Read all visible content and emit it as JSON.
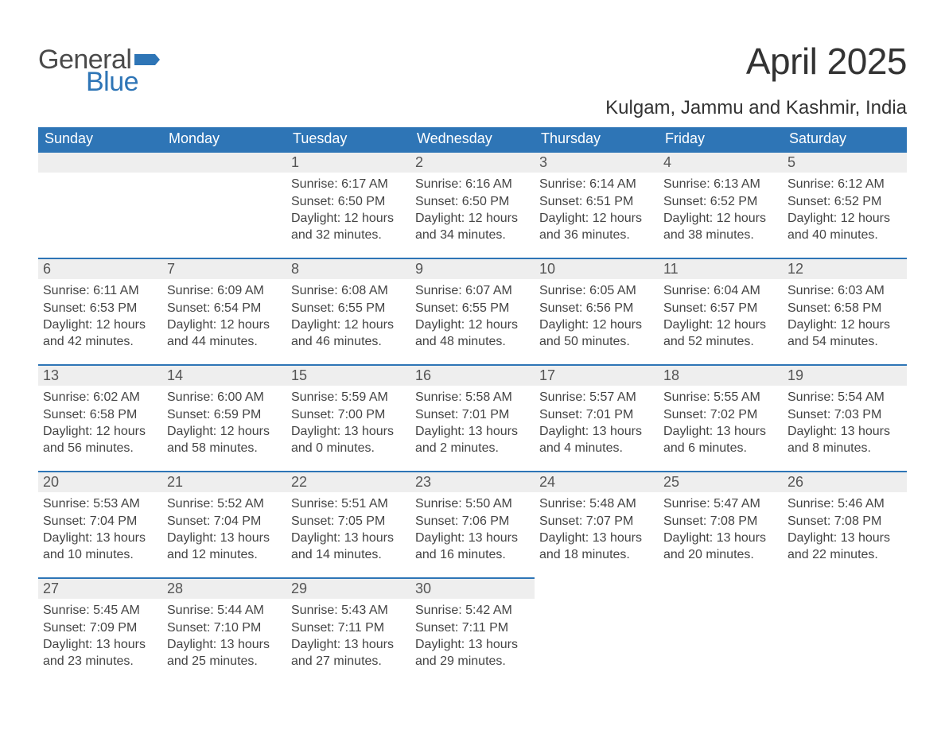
{
  "logo": {
    "text1": "General",
    "text2": "Blue"
  },
  "title": "April 2025",
  "location": "Kulgam, Jammu and Kashmir, India",
  "colors": {
    "header_bg": "#2e75b6",
    "header_text": "#ffffff",
    "band_bg": "#eeeeee",
    "band_border": "#2e75b6",
    "body_text": "#444444",
    "page_bg": "#ffffff",
    "logo_gray": "#4a4a4a",
    "logo_blue": "#2e75b6"
  },
  "typography": {
    "month_title_pt": 46,
    "location_pt": 24,
    "day_header_pt": 18,
    "day_number_pt": 18,
    "cell_text_pt": 16,
    "font_family": "Segoe UI"
  },
  "day_headers": [
    "Sunday",
    "Monday",
    "Tuesday",
    "Wednesday",
    "Thursday",
    "Friday",
    "Saturday"
  ],
  "weeks": [
    [
      {
        "num": "",
        "sunrise": "",
        "sunset": "",
        "daylight1": "",
        "daylight2": ""
      },
      {
        "num": "",
        "sunrise": "",
        "sunset": "",
        "daylight1": "",
        "daylight2": ""
      },
      {
        "num": "1",
        "sunrise": "Sunrise: 6:17 AM",
        "sunset": "Sunset: 6:50 PM",
        "daylight1": "Daylight: 12 hours",
        "daylight2": "and 32 minutes."
      },
      {
        "num": "2",
        "sunrise": "Sunrise: 6:16 AM",
        "sunset": "Sunset: 6:50 PM",
        "daylight1": "Daylight: 12 hours",
        "daylight2": "and 34 minutes."
      },
      {
        "num": "3",
        "sunrise": "Sunrise: 6:14 AM",
        "sunset": "Sunset: 6:51 PM",
        "daylight1": "Daylight: 12 hours",
        "daylight2": "and 36 minutes."
      },
      {
        "num": "4",
        "sunrise": "Sunrise: 6:13 AM",
        "sunset": "Sunset: 6:52 PM",
        "daylight1": "Daylight: 12 hours",
        "daylight2": "and 38 minutes."
      },
      {
        "num": "5",
        "sunrise": "Sunrise: 6:12 AM",
        "sunset": "Sunset: 6:52 PM",
        "daylight1": "Daylight: 12 hours",
        "daylight2": "and 40 minutes."
      }
    ],
    [
      {
        "num": "6",
        "sunrise": "Sunrise: 6:11 AM",
        "sunset": "Sunset: 6:53 PM",
        "daylight1": "Daylight: 12 hours",
        "daylight2": "and 42 minutes."
      },
      {
        "num": "7",
        "sunrise": "Sunrise: 6:09 AM",
        "sunset": "Sunset: 6:54 PM",
        "daylight1": "Daylight: 12 hours",
        "daylight2": "and 44 minutes."
      },
      {
        "num": "8",
        "sunrise": "Sunrise: 6:08 AM",
        "sunset": "Sunset: 6:55 PM",
        "daylight1": "Daylight: 12 hours",
        "daylight2": "and 46 minutes."
      },
      {
        "num": "9",
        "sunrise": "Sunrise: 6:07 AM",
        "sunset": "Sunset: 6:55 PM",
        "daylight1": "Daylight: 12 hours",
        "daylight2": "and 48 minutes."
      },
      {
        "num": "10",
        "sunrise": "Sunrise: 6:05 AM",
        "sunset": "Sunset: 6:56 PM",
        "daylight1": "Daylight: 12 hours",
        "daylight2": "and 50 minutes."
      },
      {
        "num": "11",
        "sunrise": "Sunrise: 6:04 AM",
        "sunset": "Sunset: 6:57 PM",
        "daylight1": "Daylight: 12 hours",
        "daylight2": "and 52 minutes."
      },
      {
        "num": "12",
        "sunrise": "Sunrise: 6:03 AM",
        "sunset": "Sunset: 6:58 PM",
        "daylight1": "Daylight: 12 hours",
        "daylight2": "and 54 minutes."
      }
    ],
    [
      {
        "num": "13",
        "sunrise": "Sunrise: 6:02 AM",
        "sunset": "Sunset: 6:58 PM",
        "daylight1": "Daylight: 12 hours",
        "daylight2": "and 56 minutes."
      },
      {
        "num": "14",
        "sunrise": "Sunrise: 6:00 AM",
        "sunset": "Sunset: 6:59 PM",
        "daylight1": "Daylight: 12 hours",
        "daylight2": "and 58 minutes."
      },
      {
        "num": "15",
        "sunrise": "Sunrise: 5:59 AM",
        "sunset": "Sunset: 7:00 PM",
        "daylight1": "Daylight: 13 hours",
        "daylight2": "and 0 minutes."
      },
      {
        "num": "16",
        "sunrise": "Sunrise: 5:58 AM",
        "sunset": "Sunset: 7:01 PM",
        "daylight1": "Daylight: 13 hours",
        "daylight2": "and 2 minutes."
      },
      {
        "num": "17",
        "sunrise": "Sunrise: 5:57 AM",
        "sunset": "Sunset: 7:01 PM",
        "daylight1": "Daylight: 13 hours",
        "daylight2": "and 4 minutes."
      },
      {
        "num": "18",
        "sunrise": "Sunrise: 5:55 AM",
        "sunset": "Sunset: 7:02 PM",
        "daylight1": "Daylight: 13 hours",
        "daylight2": "and 6 minutes."
      },
      {
        "num": "19",
        "sunrise": "Sunrise: 5:54 AM",
        "sunset": "Sunset: 7:03 PM",
        "daylight1": "Daylight: 13 hours",
        "daylight2": "and 8 minutes."
      }
    ],
    [
      {
        "num": "20",
        "sunrise": "Sunrise: 5:53 AM",
        "sunset": "Sunset: 7:04 PM",
        "daylight1": "Daylight: 13 hours",
        "daylight2": "and 10 minutes."
      },
      {
        "num": "21",
        "sunrise": "Sunrise: 5:52 AM",
        "sunset": "Sunset: 7:04 PM",
        "daylight1": "Daylight: 13 hours",
        "daylight2": "and 12 minutes."
      },
      {
        "num": "22",
        "sunrise": "Sunrise: 5:51 AM",
        "sunset": "Sunset: 7:05 PM",
        "daylight1": "Daylight: 13 hours",
        "daylight2": "and 14 minutes."
      },
      {
        "num": "23",
        "sunrise": "Sunrise: 5:50 AM",
        "sunset": "Sunset: 7:06 PM",
        "daylight1": "Daylight: 13 hours",
        "daylight2": "and 16 minutes."
      },
      {
        "num": "24",
        "sunrise": "Sunrise: 5:48 AM",
        "sunset": "Sunset: 7:07 PM",
        "daylight1": "Daylight: 13 hours",
        "daylight2": "and 18 minutes."
      },
      {
        "num": "25",
        "sunrise": "Sunrise: 5:47 AM",
        "sunset": "Sunset: 7:08 PM",
        "daylight1": "Daylight: 13 hours",
        "daylight2": "and 20 minutes."
      },
      {
        "num": "26",
        "sunrise": "Sunrise: 5:46 AM",
        "sunset": "Sunset: 7:08 PM",
        "daylight1": "Daylight: 13 hours",
        "daylight2": "and 22 minutes."
      }
    ],
    [
      {
        "num": "27",
        "sunrise": "Sunrise: 5:45 AM",
        "sunset": "Sunset: 7:09 PM",
        "daylight1": "Daylight: 13 hours",
        "daylight2": "and 23 minutes."
      },
      {
        "num": "28",
        "sunrise": "Sunrise: 5:44 AM",
        "sunset": "Sunset: 7:10 PM",
        "daylight1": "Daylight: 13 hours",
        "daylight2": "and 25 minutes."
      },
      {
        "num": "29",
        "sunrise": "Sunrise: 5:43 AM",
        "sunset": "Sunset: 7:11 PM",
        "daylight1": "Daylight: 13 hours",
        "daylight2": "and 27 minutes."
      },
      {
        "num": "30",
        "sunrise": "Sunrise: 5:42 AM",
        "sunset": "Sunset: 7:11 PM",
        "daylight1": "Daylight: 13 hours",
        "daylight2": "and 29 minutes."
      },
      {
        "num": "",
        "sunrise": "",
        "sunset": "",
        "daylight1": "",
        "daylight2": ""
      },
      {
        "num": "",
        "sunrise": "",
        "sunset": "",
        "daylight1": "",
        "daylight2": ""
      },
      {
        "num": "",
        "sunrise": "",
        "sunset": "",
        "daylight1": "",
        "daylight2": ""
      }
    ]
  ]
}
